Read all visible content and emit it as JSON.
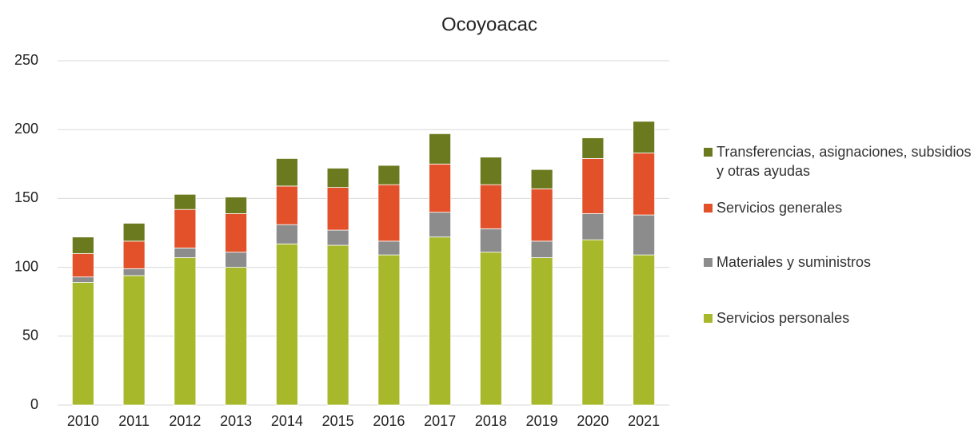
{
  "chart_data": {
    "type": "stacked_bar",
    "title": "Ocoyoacac",
    "categories": [
      "2010",
      "2011",
      "2012",
      "2013",
      "2014",
      "2015",
      "2016",
      "2017",
      "2018",
      "2019",
      "2020",
      "2021"
    ],
    "series": [
      {
        "name": "Servicios personales",
        "color": "#a7b92a",
        "values": [
          89,
          94,
          107,
          100,
          117,
          116,
          109,
          122,
          111,
          107,
          120,
          109
        ]
      },
      {
        "name": "Materiales y suministros",
        "color": "#8c8c8c",
        "values": [
          4,
          5,
          7,
          11,
          14,
          11,
          10,
          18,
          17,
          12,
          19,
          29
        ]
      },
      {
        "name": "Servicios generales",
        "color": "#e2512a",
        "values": [
          17,
          20,
          28,
          28,
          28,
          31,
          41,
          35,
          32,
          38,
          40,
          45
        ]
      },
      {
        "name": "Transferencias, asignaciones, subsidios y otras ayudas",
        "color": "#6b7a1e",
        "values": [
          12,
          13,
          11,
          12,
          20,
          14,
          14,
          22,
          20,
          14,
          15,
          23
        ]
      }
    ],
    "ylim": [
      0,
      250
    ],
    "yticks": [
      0,
      50,
      100,
      150,
      200,
      250
    ],
    "grid": true,
    "legend": "right"
  }
}
